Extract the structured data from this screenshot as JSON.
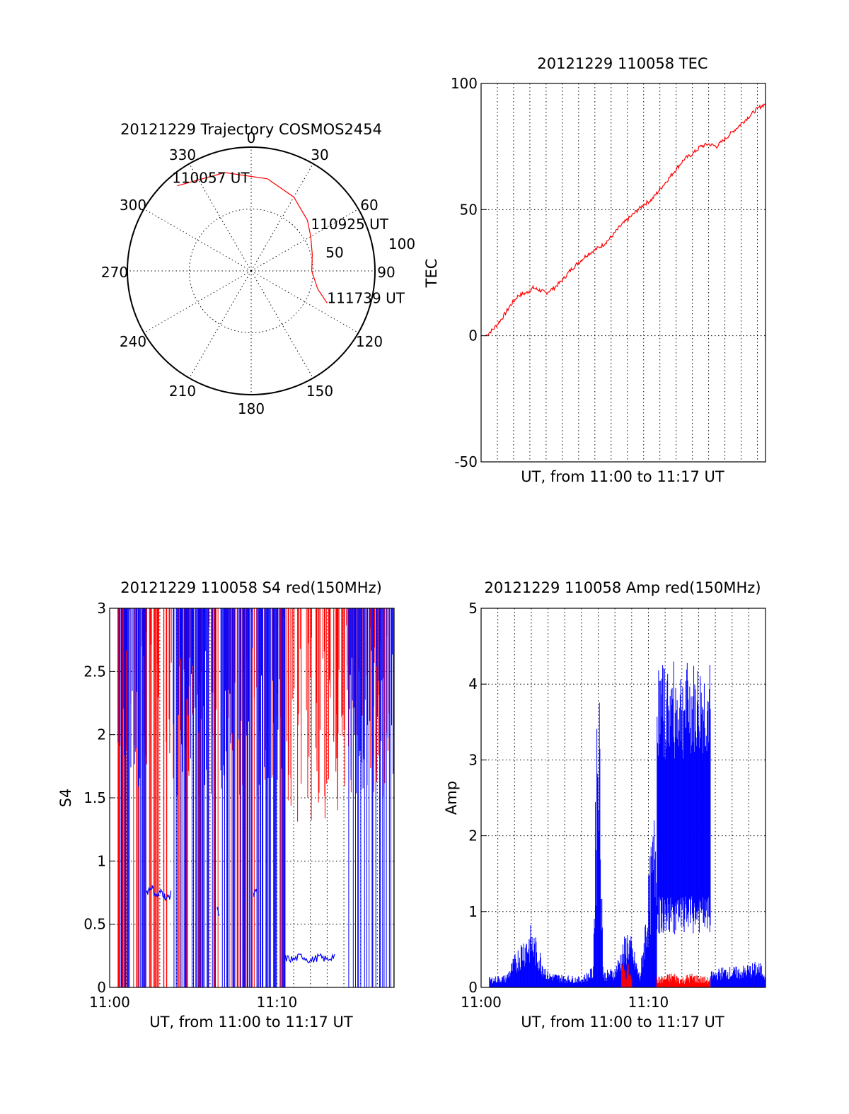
{
  "chart_data": [
    {
      "type": "polar",
      "title": "20121229 Trajectory COSMOS2454",
      "angle_labels": [
        "0",
        "30",
        "60",
        "90",
        "120",
        "150",
        "180",
        "210",
        "240",
        "270",
        "300",
        "330"
      ],
      "radial_labels": [
        "50",
        "100"
      ],
      "grid": true,
      "trajectory": {
        "color": "#ff0000",
        "points": [
          {
            "az": 319,
            "el": 8
          },
          {
            "az": 345,
            "el": 16
          },
          {
            "az": 10,
            "el": 22
          },
          {
            "az": 30,
            "el": 28
          },
          {
            "az": 48,
            "el": 35
          },
          {
            "az": 60,
            "el": 40
          },
          {
            "az": 75,
            "el": 44
          },
          {
            "az": 90,
            "el": 46
          },
          {
            "az": 105,
            "el": 40
          },
          {
            "az": 113,
            "el": 30
          }
        ]
      },
      "annotations": [
        {
          "text": "110057 UT",
          "az": 318,
          "el": 4
        },
        {
          "text": "110925 UT",
          "az": 55,
          "el": 37
        },
        {
          "text": "111739 UT",
          "az": 113,
          "el": 30
        }
      ]
    },
    {
      "type": "line",
      "title": "20121229 110058 TEC",
      "xlabel": "UT, from 11:00 to 11:17 UT",
      "ylabel": "TEC",
      "ylim": [
        -50,
        100
      ],
      "yticks": [
        "-50",
        "0",
        "50",
        "100"
      ],
      "xlim": [
        0,
        17.5
      ],
      "grid": true,
      "series": [
        {
          "color": "#ff0000",
          "x": [
            0.3,
            0.8,
            1.3,
            1.8,
            2.3,
            2.8,
            3.2,
            3.6,
            4.0,
            4.5,
            5.0,
            5.5,
            6.0,
            6.5,
            7.0,
            7.5,
            8.0,
            8.5,
            9.0,
            9.5,
            10.0,
            10.5,
            11.0,
            11.5,
            12.0,
            12.5,
            13.0,
            13.5,
            14.0,
            14.5,
            15.0,
            15.5,
            16.0,
            16.5,
            17.0,
            17.5
          ],
          "y": [
            0,
            3,
            7,
            12,
            16,
            17,
            19,
            18,
            17,
            19,
            22,
            26,
            29,
            32,
            34,
            36,
            39,
            43,
            46,
            49,
            52,
            54,
            58,
            62,
            66,
            70,
            72,
            75,
            76,
            75,
            78,
            81,
            84,
            87,
            90,
            92
          ]
        }
      ]
    },
    {
      "type": "line",
      "title": "20121229 110058 S4 red(150MHz)",
      "xlabel": "UT, from 11:00 to 11:17 UT",
      "ylabel": "S4",
      "ylim": [
        0,
        3
      ],
      "yticks": [
        "0",
        "0.5",
        "1",
        "1.5",
        "2",
        "2.5",
        "3"
      ],
      "xlim": [
        0,
        17
      ],
      "xticks": [
        {
          "value": 0,
          "label": "11:00"
        },
        {
          "value": 10,
          "label": "11:10"
        }
      ],
      "grid": true,
      "series": [
        {
          "color": "#ff0000",
          "description_segments": [
            [
              0.5,
              17,
              "saturated, dense spikes to 3"
            ]
          ]
        },
        {
          "color": "#0000ff",
          "x": [
            2.2,
            2.5,
            2.8,
            3.1,
            3.4,
            3.7,
            6.4,
            6.6,
            8.6,
            8.8,
            10.5,
            11,
            11.5,
            12,
            12.5,
            13,
            13.5
          ],
          "y": [
            0.75,
            0.8,
            0.72,
            0.76,
            0.7,
            0.74,
            0.65,
            0.55,
            0.72,
            0.78,
            0.23,
            0.22,
            0.25,
            0.21,
            0.24,
            0.22,
            0.26
          ]
        }
      ]
    },
    {
      "type": "line",
      "title": "20121229 110058 Amp red(150MHz)",
      "xlabel": "UT, from 11:00 to 11:17 UT",
      "ylabel": "Amp",
      "ylim": [
        0,
        5
      ],
      "yticks": [
        "0",
        "1",
        "2",
        "3",
        "4",
        "5"
      ],
      "xlim": [
        0,
        17
      ],
      "xticks": [
        {
          "value": 0,
          "label": "11:00"
        },
        {
          "value": 10,
          "label": "11:10"
        }
      ],
      "grid": true,
      "series": [
        {
          "color": "#0000ff",
          "x": [
            0.5,
            1.5,
            2.5,
            3.0,
            4.0,
            5.0,
            6.0,
            6.7,
            7.0,
            7.3,
            8.0,
            8.8,
            9.5,
            10.5,
            11.0,
            11.5,
            12.0,
            12.5,
            13.0,
            13.7,
            14.5,
            15.5,
            16.5,
            17.0
          ],
          "y": [
            0.1,
            0.12,
            0.5,
            0.6,
            0.15,
            0.12,
            0.1,
            0.2,
            3.8,
            0.15,
            0.2,
            0.6,
            0.12,
            2.0,
            2.2,
            2.4,
            2.3,
            2.5,
            2.2,
            0.15,
            0.2,
            0.2,
            0.25,
            0.2
          ]
        },
        {
          "color": "#ff0000",
          "x": [
            8.5,
            9.0,
            10.5,
            11.0,
            11.5,
            12.0,
            12.5,
            13.0,
            13.5
          ],
          "y": [
            0.3,
            0.15,
            0.1,
            0.12,
            0.15,
            0.1,
            0.14,
            0.12,
            0.1
          ]
        }
      ]
    }
  ]
}
